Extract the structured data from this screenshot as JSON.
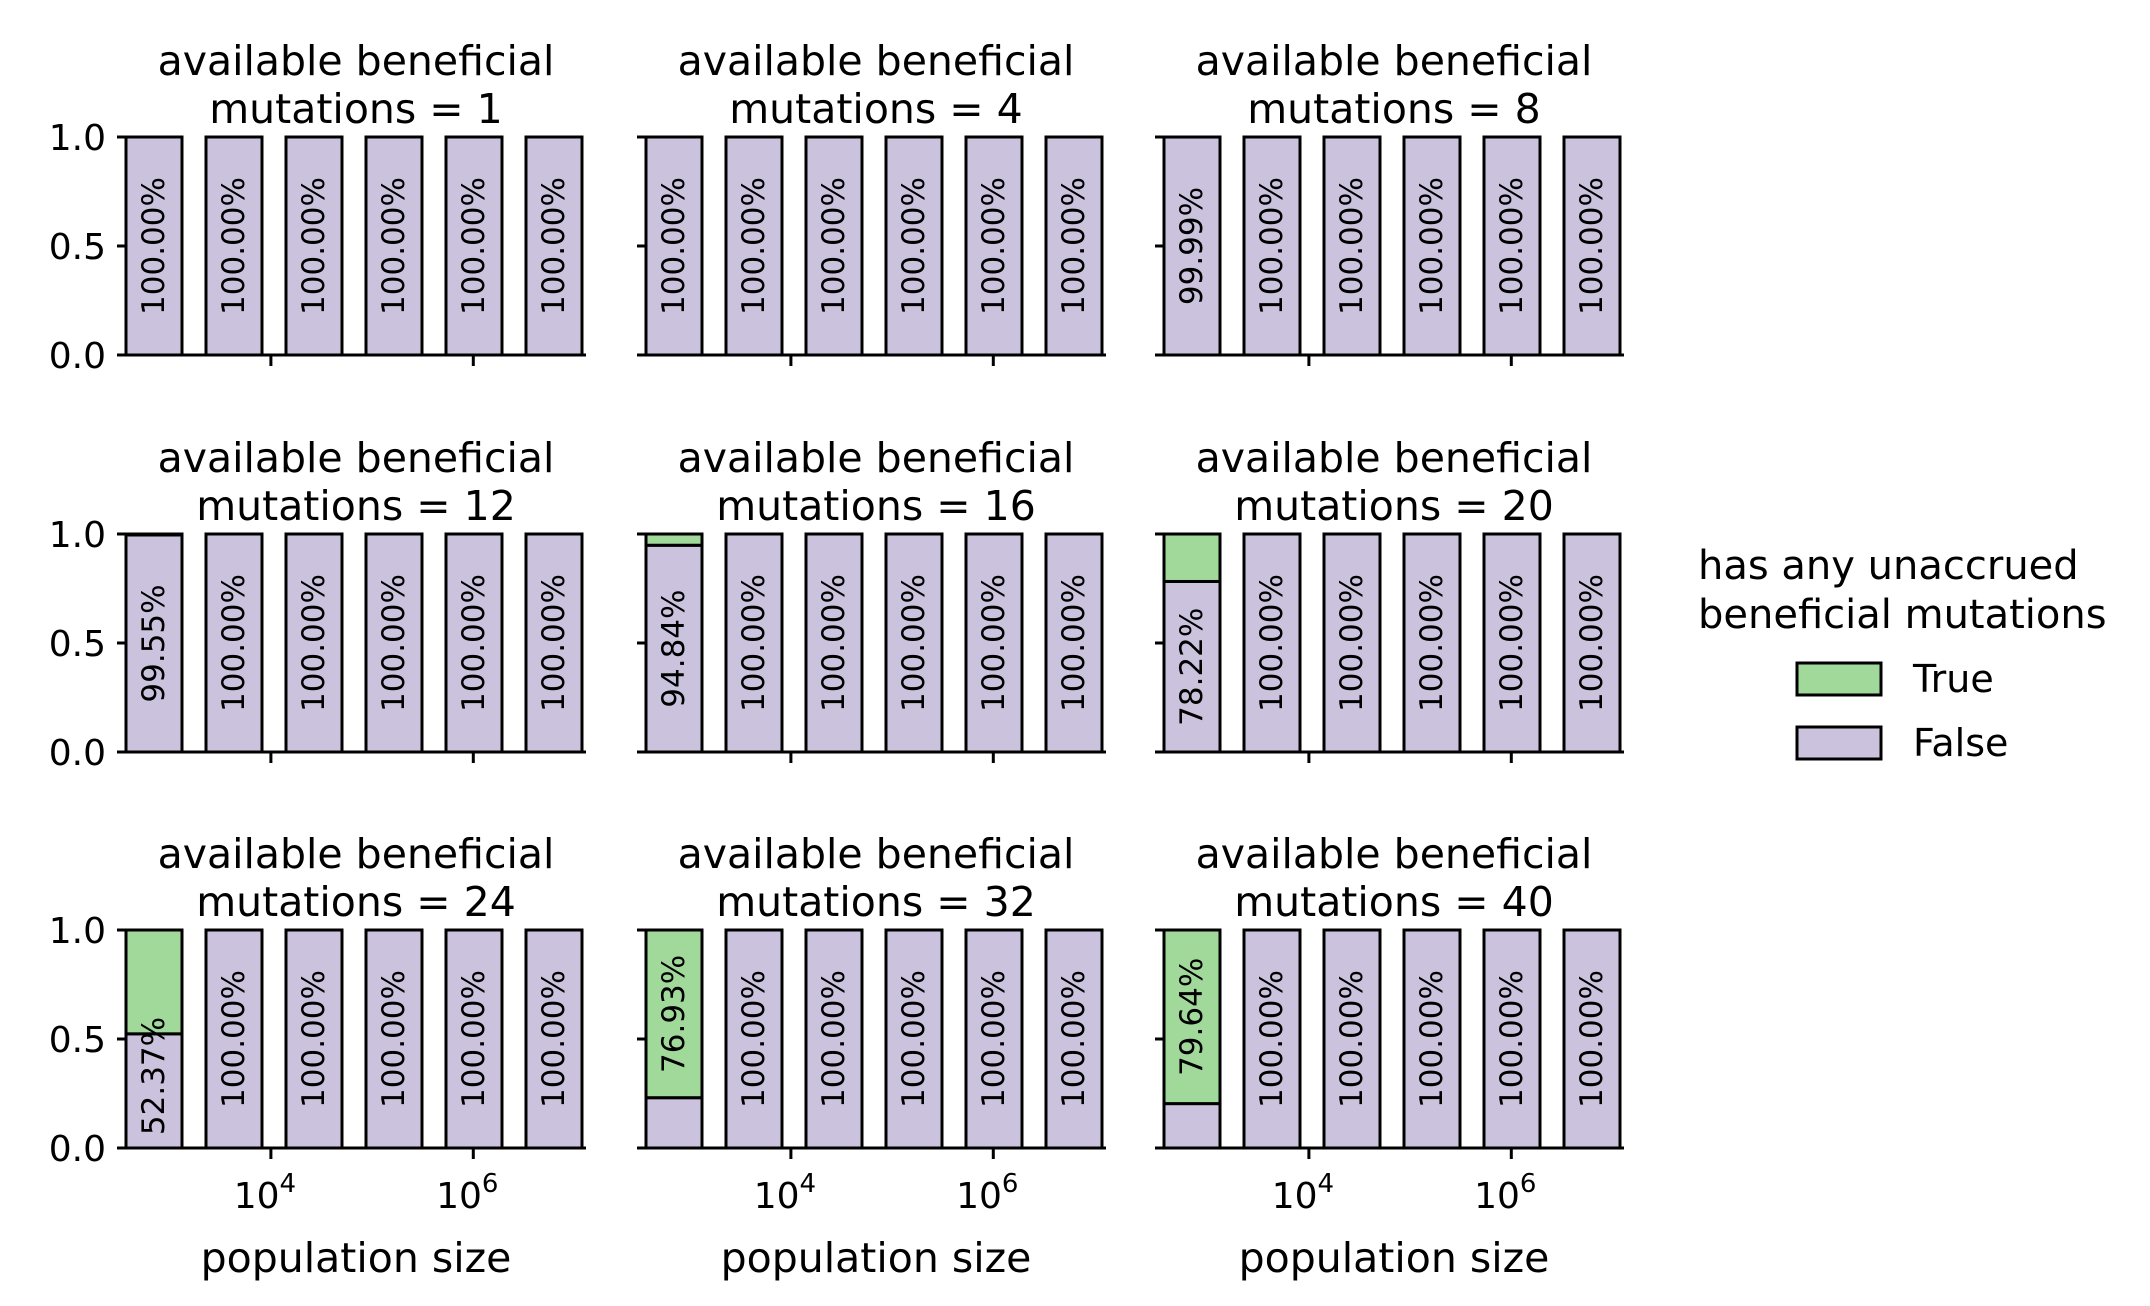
{
  "chart_data": {
    "type": "bar",
    "stacked": true,
    "normalized": true,
    "xlabel": "population size",
    "x_ticks": [
      "10^4",
      "10^6"
    ],
    "y_ticks": [
      "0.0",
      "0.5",
      "1.0"
    ],
    "ylim": [
      0,
      1
    ],
    "legend": {
      "title": "has any unaccrued\nbeneficial mutations",
      "placement": "right",
      "entries": [
        {
          "label": "True",
          "color": "#a1d99b"
        },
        {
          "label": "False",
          "color": "#cbc3dd"
        }
      ]
    },
    "colors": {
      "true": "#a1d99b",
      "false": "#cbc3dd",
      "edge": "#000000"
    },
    "bars_per_panel": 6,
    "panels": [
      {
        "title_line1": "available beneficial",
        "title_line2": "mutations = 1",
        "true_fraction": [
          0,
          0,
          0,
          0,
          0,
          0
        ],
        "bar_labels": [
          "100.00%",
          "100.00%",
          "100.00%",
          "100.00%",
          "100.00%",
          "100.00%"
        ]
      },
      {
        "title_line1": "available beneficial",
        "title_line2": "mutations = 4",
        "true_fraction": [
          0,
          0,
          0,
          0,
          0,
          0
        ],
        "bar_labels": [
          "100.00%",
          "100.00%",
          "100.00%",
          "100.00%",
          "100.00%",
          "100.00%"
        ]
      },
      {
        "title_line1": "available beneficial",
        "title_line2": "mutations = 8",
        "true_fraction": [
          0.0001,
          0,
          0,
          0,
          0,
          0
        ],
        "bar_labels": [
          "99.99%",
          "100.00%",
          "100.00%",
          "100.00%",
          "100.00%",
          "100.00%"
        ]
      },
      {
        "title_line1": "available beneficial",
        "title_line2": "mutations = 12",
        "true_fraction": [
          0.0045,
          0,
          0,
          0,
          0,
          0
        ],
        "bar_labels": [
          "99.55%",
          "100.00%",
          "100.00%",
          "100.00%",
          "100.00%",
          "100.00%"
        ]
      },
      {
        "title_line1": "available beneficial",
        "title_line2": "mutations = 16",
        "true_fraction": [
          0.0516,
          0,
          0,
          0,
          0,
          0
        ],
        "bar_labels": [
          "94.84%",
          "100.00%",
          "100.00%",
          "100.00%",
          "100.00%",
          "100.00%"
        ]
      },
      {
        "title_line1": "available beneficial",
        "title_line2": "mutations = 20",
        "true_fraction": [
          0.2178,
          0,
          0,
          0,
          0,
          0
        ],
        "bar_labels": [
          "78.22%",
          "100.00%",
          "100.00%",
          "100.00%",
          "100.00%",
          "100.00%"
        ]
      },
      {
        "title_line1": "available beneficial",
        "title_line2": "mutations = 24",
        "true_fraction": [
          0.4763,
          0,
          0,
          0,
          0,
          0
        ],
        "bar_labels": [
          "52.37%",
          "100.00%",
          "100.00%",
          "100.00%",
          "100.00%",
          "100.00%"
        ]
      },
      {
        "title_line1": "available beneficial",
        "title_line2": "mutations = 32",
        "true_fraction": [
          0.7693,
          0,
          0,
          0,
          0,
          0
        ],
        "bar_labels": [
          "76.93%",
          "100.00%",
          "100.00%",
          "100.00%",
          "100.00%",
          "100.00%"
        ],
        "first_label_on": "true"
      },
      {
        "title_line1": "available beneficial",
        "title_line2": "mutations = 40",
        "true_fraction": [
          0.7964,
          0,
          0,
          0,
          0,
          0
        ],
        "bar_labels": [
          "79.64%",
          "100.00%",
          "100.00%",
          "100.00%",
          "100.00%",
          "100.00%"
        ],
        "first_label_on": "true"
      }
    ]
  }
}
